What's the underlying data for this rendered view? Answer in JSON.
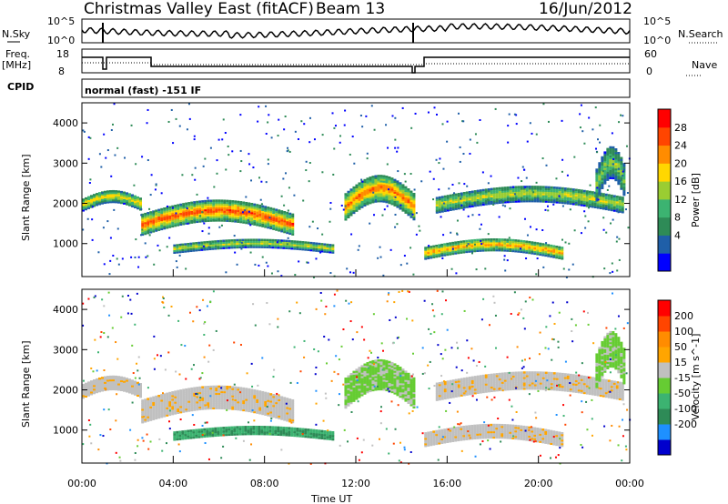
{
  "header": {
    "title": "Christmas Valley East (fitACF)",
    "beam": "Beam 13",
    "date": "16/Jun/2012"
  },
  "top_panel": {
    "left_label": "N.Sky",
    "right_label": "N.Search",
    "left_ticks": [
      "10^5",
      "10^0"
    ],
    "right_ticks": [
      "10^5",
      "10^0"
    ]
  },
  "freq_panel": {
    "left_label_1": "Freq.",
    "left_label_2": "[MHz]",
    "right_label": "Nave",
    "left_ticks": [
      "18",
      "8"
    ],
    "right_ticks": [
      "60",
      "0"
    ]
  },
  "cpid": {
    "label": "CPID",
    "value": "normal (fast) -151 IF"
  },
  "chart_data": [
    {
      "type": "heatmap",
      "name": "Power",
      "ylabel": "Slant Range [km]",
      "xlabel": "",
      "ylim": [
        180,
        4500
      ],
      "yticks": [
        1000,
        2000,
        3000,
        4000
      ],
      "colorbar_label": "Power [dB]",
      "colorbar_ticks": [
        "28",
        "24",
        "20",
        "16",
        "12",
        "8",
        "4"
      ],
      "colorbar_colors": [
        "#0000ff",
        "#1f5fa8",
        "#2e8b57",
        "#3cb371",
        "#9acd32",
        "#ffd700",
        "#ff8c00",
        "#ff4500",
        "#ff0000"
      ],
      "echo_bands": [
        {
          "start_h": 0.0,
          "end_h": 2.6,
          "range_km": [
            1700,
            2300
          ],
          "level": 18
        },
        {
          "start_h": 2.6,
          "end_h": 9.2,
          "range_km": [
            1000,
            2000
          ],
          "level": 24
        },
        {
          "start_h": 4.0,
          "end_h": 11.0,
          "range_km": [
            700,
            1100
          ],
          "level": 16
        },
        {
          "start_h": 11.5,
          "end_h": 14.5,
          "range_km": [
            1300,
            2600
          ],
          "level": 22
        },
        {
          "start_h": 15.0,
          "end_h": 21.0,
          "range_km": [
            500,
            1100
          ],
          "level": 20
        },
        {
          "start_h": 15.5,
          "end_h": 23.7,
          "range_km": [
            1600,
            2400
          ],
          "level": 16
        },
        {
          "start_h": 22.5,
          "end_h": 23.8,
          "range_km": [
            1700,
            3300
          ],
          "level": 14
        }
      ]
    },
    {
      "type": "heatmap",
      "name": "Velocity",
      "ylabel": "Slant Range [km]",
      "xlabel": "Time UT",
      "ylim": [
        180,
        4500
      ],
      "yticks": [
        1000,
        2000,
        3000,
        4000
      ],
      "xticks": [
        "00:00",
        "04:00",
        "08:00",
        "12:00",
        "16:00",
        "20:00",
        "00:00"
      ],
      "colorbar_label": "Velocity [m s^-1]",
      "colorbar_ticks": [
        "200",
        "100",
        "50",
        "15",
        "-15",
        "-50",
        "-100",
        "-200"
      ],
      "colorbar_colors": [
        "#0000cd",
        "#1e90ff",
        "#2e8b57",
        "#3cb371",
        "#66cc33",
        "#c0c0c0",
        "#ffa500",
        "#ff8c00",
        "#ff4500",
        "#ff0000"
      ]
    }
  ]
}
